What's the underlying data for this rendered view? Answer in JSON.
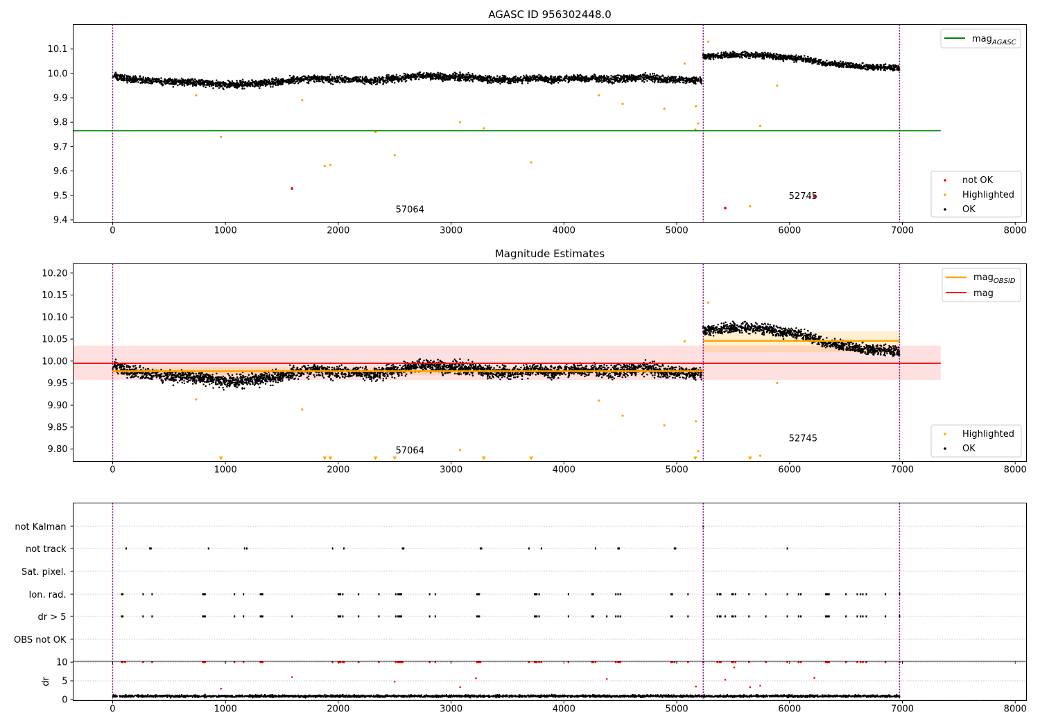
{
  "chart_data": [
    {
      "type": "scatter",
      "title": "AGASC ID 956302448.0",
      "xlabel": "",
      "ylabel": "",
      "xlim": [
        -350,
        8100
      ],
      "ylim": [
        9.39,
        10.2
      ],
      "xticks": [
        0,
        1000,
        2000,
        3000,
        4000,
        5000,
        6000,
        7000,
        8000
      ],
      "xtick_labels": [
        "0",
        "1000",
        "2000",
        "3000",
        "4000",
        "5000",
        "6000",
        "7000",
        "8000"
      ],
      "yticks": [
        9.4,
        9.5,
        9.6,
        9.7,
        9.8,
        9.9,
        10.0,
        10.1
      ],
      "ytick_labels": [
        "9.4",
        "9.5",
        "9.6",
        "9.7",
        "9.8",
        "9.9",
        "10.0",
        "10.1"
      ],
      "obsid_boundaries": [
        0,
        5235,
        6975
      ],
      "obsid_labels": [
        {
          "x": 2500,
          "y": 9.43,
          "text": "57064"
        },
        {
          "x": 5985,
          "y": 9.485,
          "text": "52745"
        }
      ],
      "reference_lines": [
        {
          "name": "mag_AGASC",
          "label_main": "mag",
          "label_sub": "AGASC",
          "y": 9.765,
          "x_range": [
            -350,
            7340
          ],
          "color": "#008000"
        }
      ],
      "ok_segments": [
        {
          "x_start": 0,
          "x_end": 5220,
          "values": [
            9.99,
            9.975,
            9.97,
            9.965,
            9.965,
            9.96,
            9.955,
            9.955,
            9.96,
            9.965,
            9.975,
            9.98,
            9.975,
            9.975,
            9.97,
            9.975,
            9.985,
            9.99,
            9.985,
            9.985,
            9.98,
            9.975,
            9.975,
            9.98,
            9.975,
            9.98,
            9.98,
            9.975,
            9.98,
            9.985,
            9.975,
            9.975,
            9.97
          ],
          "spread": 0.025
        },
        {
          "x_start": 5225,
          "x_end": 6975,
          "values": [
            10.07,
            10.07,
            10.075,
            10.075,
            10.075,
            10.07,
            10.065,
            10.06,
            10.05,
            10.04,
            10.035,
            10.03,
            10.025,
            10.025,
            10.02
          ],
          "spread": 0.02
        }
      ],
      "highlighted_points": [
        {
          "x": 740,
          "y": 9.91
        },
        {
          "x": 960,
          "y": 9.74
        },
        {
          "x": 1680,
          "y": 9.89
        },
        {
          "x": 1880,
          "y": 9.62
        },
        {
          "x": 1930,
          "y": 9.625
        },
        {
          "x": 2330,
          "y": 9.76
        },
        {
          "x": 2500,
          "y": 9.665
        },
        {
          "x": 3080,
          "y": 9.8
        },
        {
          "x": 3290,
          "y": 9.775
        },
        {
          "x": 3710,
          "y": 9.635
        },
        {
          "x": 4310,
          "y": 9.91
        },
        {
          "x": 4520,
          "y": 9.875
        },
        {
          "x": 4890,
          "y": 9.855
        },
        {
          "x": 5070,
          "y": 10.04
        },
        {
          "x": 5170,
          "y": 9.865
        },
        {
          "x": 5190,
          "y": 9.795
        },
        {
          "x": 5165,
          "y": 9.77
        },
        {
          "x": 5280,
          "y": 10.13
        },
        {
          "x": 5650,
          "y": 9.455
        },
        {
          "x": 5740,
          "y": 9.785
        },
        {
          "x": 5890,
          "y": 9.95
        }
      ],
      "not_ok_points": [
        {
          "x": 1590,
          "y": 9.528
        },
        {
          "x": 5430,
          "y": 9.448
        },
        {
          "x": 6220,
          "y": 9.495
        }
      ],
      "legend_upper": [
        {
          "label_main": "mag",
          "label_sub": "AGASC",
          "color": "#008000",
          "marker": "line"
        }
      ],
      "legend_lower": [
        {
          "label": "not OK",
          "color": "#ff0000",
          "marker": "dot"
        },
        {
          "label": "Highlighted",
          "color": "#ffa500",
          "marker": "dot"
        },
        {
          "label": "OK",
          "color": "#000000",
          "marker": "dot"
        }
      ]
    },
    {
      "type": "scatter",
      "title": "Magnitude Estimates",
      "xlabel": "",
      "ylabel": "",
      "xlim": [
        -350,
        8100
      ],
      "ylim": [
        9.772,
        10.221
      ],
      "xticks": [
        0,
        1000,
        2000,
        3000,
        4000,
        5000,
        6000,
        7000,
        8000
      ],
      "xtick_labels": [
        "0",
        "1000",
        "2000",
        "3000",
        "4000",
        "5000",
        "6000",
        "7000",
        "8000"
      ],
      "yticks": [
        9.8,
        9.85,
        9.9,
        9.95,
        10.0,
        10.05,
        10.1,
        10.15,
        10.2
      ],
      "ytick_labels": [
        "9.80",
        "9.85",
        "9.90",
        "9.95",
        "10.00",
        "10.05",
        "10.10",
        "10.15",
        "10.20"
      ],
      "obsid_boundaries": [
        0,
        5235,
        6975
      ],
      "obsid_labels": [
        {
          "x": 2500,
          "y": 9.79,
          "text": "57064"
        },
        {
          "x": 5985,
          "y": 9.818,
          "text": "52745"
        }
      ],
      "mag_band": {
        "y": 9.995,
        "low": 9.957,
        "high": 10.035,
        "x_range": [
          -350,
          7340
        ],
        "color": "#ff0000"
      },
      "obsid_mags": [
        {
          "x_range": [
            0,
            5235
          ],
          "y": 9.977,
          "low": 9.968,
          "high": 9.986
        },
        {
          "x_range": [
            5235,
            6975
          ],
          "y": 10.046,
          "low": 10.02,
          "high": 10.068
        }
      ],
      "ok_segments": [
        {
          "x_start": 0,
          "x_end": 5220,
          "values": [
            9.99,
            9.975,
            9.97,
            9.965,
            9.965,
            9.96,
            9.955,
            9.955,
            9.96,
            9.965,
            9.975,
            9.98,
            9.975,
            9.975,
            9.97,
            9.975,
            9.985,
            9.99,
            9.985,
            9.985,
            9.98,
            9.975,
            9.975,
            9.98,
            9.975,
            9.98,
            9.98,
            9.975,
            9.98,
            9.985,
            9.975,
            9.975,
            9.97
          ],
          "spread": 0.025
        },
        {
          "x_start": 5225,
          "x_end": 6975,
          "values": [
            10.07,
            10.07,
            10.075,
            10.075,
            10.075,
            10.07,
            10.065,
            10.06,
            10.05,
            10.04,
            10.035,
            10.03,
            10.025,
            10.025,
            10.02
          ],
          "spread": 0.02
        }
      ],
      "highlighted_points": [
        {
          "x": 740,
          "y": 9.913
        },
        {
          "x": 1680,
          "y": 9.89
        },
        {
          "x": 3080,
          "y": 9.798
        },
        {
          "x": 4310,
          "y": 9.91
        },
        {
          "x": 4520,
          "y": 9.876
        },
        {
          "x": 4890,
          "y": 9.854
        },
        {
          "x": 5070,
          "y": 10.045
        },
        {
          "x": 5170,
          "y": 9.863
        },
        {
          "x": 5190,
          "y": 9.795
        },
        {
          "x": 5280,
          "y": 10.133
        },
        {
          "x": 5740,
          "y": 9.785
        },
        {
          "x": 5890,
          "y": 9.95
        }
      ],
      "below_axis_markers": [
        960,
        1880,
        1930,
        2330,
        2500,
        3290,
        3710,
        5165,
        5650
      ],
      "legend_upper": [
        {
          "label_main": "mag",
          "label_sub": "OBSID",
          "color": "#ffa500",
          "marker": "line"
        },
        {
          "label_main": "mag",
          "label_sub": "",
          "color": "#ff0000",
          "marker": "line"
        }
      ],
      "legend_lower": [
        {
          "label": "Highlighted",
          "color": "#ffa500",
          "marker": "dot"
        },
        {
          "label": "OK",
          "color": "#000000",
          "marker": "dot"
        }
      ]
    },
    {
      "type": "scatter",
      "title": "",
      "xlabel": "",
      "ylabel": "",
      "xlim": [
        -350,
        8100
      ],
      "xticks": [
        0,
        1000,
        2000,
        3000,
        4000,
        5000,
        6000,
        7000,
        8000
      ],
      "xtick_labels": [
        "0",
        "1000",
        "2000",
        "3000",
        "4000",
        "5000",
        "6000",
        "7000",
        "8000"
      ],
      "obsid_boundaries": [
        0,
        5235,
        6975
      ],
      "categories": [
        "not Kalman",
        "not track",
        "Sat. pixel.",
        "Ion. rad.",
        "dr > 5",
        "OBS not OK"
      ],
      "flag_points": {
        "not Kalman": [
          5235
        ],
        "not track": [
          120,
          330,
          340,
          850,
          1170,
          1190,
          1950,
          2050,
          2570,
          2580,
          3260,
          3270,
          3690,
          3800,
          4280,
          4480,
          4490,
          4980,
          4990,
          5980
        ],
        "Sat. pixel.": [],
        "Ion. rad.": [
          80,
          90,
          270,
          350,
          800,
          810,
          820,
          1080,
          1160,
          1310,
          1320,
          1330,
          2000,
          2010,
          2020,
          2040,
          2180,
          2360,
          2510,
          2530,
          2540,
          2550,
          2560,
          2810,
          2860,
          3230,
          3240,
          3250,
          3740,
          3750,
          3760,
          3780,
          4040,
          4250,
          4260,
          4460,
          4480,
          4500,
          4950,
          4960,
          5100,
          5360,
          5380,
          5390,
          5490,
          5500,
          5520,
          5640,
          5790,
          5980,
          6080,
          6100,
          6320,
          6330,
          6340,
          6350,
          6500,
          6600,
          6630,
          6650,
          6680,
          6850,
          6975
        ],
        "dr > 5": [
          80,
          90,
          270,
          350,
          800,
          810,
          820,
          1080,
          1160,
          1310,
          1320,
          1330,
          1590,
          2000,
          2010,
          2020,
          2040,
          2180,
          2360,
          2510,
          2530,
          2540,
          2550,
          2560,
          2810,
          2860,
          3230,
          3240,
          3250,
          3740,
          3750,
          3760,
          3780,
          4040,
          4250,
          4260,
          4380,
          4460,
          4480,
          4500,
          4950,
          4960,
          5100,
          5360,
          5380,
          5390,
          5430,
          5490,
          5500,
          5520,
          5640,
          5790,
          5980,
          6080,
          6100,
          6320,
          6330,
          6340,
          6350,
          6500,
          6600,
          6630,
          6650,
          6680,
          6850,
          6975
        ],
        "OBS not OK": []
      }
    },
    {
      "type": "scatter",
      "title": "",
      "xlabel": "",
      "ylabel": "dr",
      "xlim": [
        -350,
        8100
      ],
      "ylim": [
        -0.3,
        10.3
      ],
      "xticks": [
        0,
        1000,
        2000,
        3000,
        4000,
        5000,
        6000,
        7000,
        8000
      ],
      "xtick_labels": [
        "0",
        "1000",
        "2000",
        "3000",
        "4000",
        "5000",
        "6000",
        "7000",
        "8000"
      ],
      "yticks": [
        0,
        5,
        10
      ],
      "ytick_labels": [
        "0",
        "5",
        "10"
      ],
      "obsid_boundaries": [
        0,
        5235,
        6975
      ],
      "dr_baseline": {
        "x_start": 0,
        "x_end": 6975,
        "mean": 0.9,
        "spread": 0.6
      },
      "dr_outliers": [
        {
          "x": 960,
          "y": 2.9
        },
        {
          "x": 1590,
          "y": 6.0
        },
        {
          "x": 2500,
          "y": 4.8
        },
        {
          "x": 3080,
          "y": 3.3
        },
        {
          "x": 3220,
          "y": 5.7
        },
        {
          "x": 4380,
          "y": 5.5
        },
        {
          "x": 5170,
          "y": 3.5
        },
        {
          "x": 5430,
          "y": 5.3
        },
        {
          "x": 5510,
          "y": 8.6
        },
        {
          "x": 5650,
          "y": 3.3
        },
        {
          "x": 5740,
          "y": 3.7
        },
        {
          "x": 6220,
          "y": 5.8
        }
      ],
      "dr_capped": [
        80,
        90,
        110,
        270,
        350,
        800,
        810,
        820,
        1080,
        1160,
        1310,
        1320,
        1330,
        1950,
        2000,
        2010,
        2020,
        2040,
        2050,
        2180,
        2360,
        2510,
        2530,
        2540,
        2550,
        2560,
        2570,
        2810,
        2860,
        3230,
        3240,
        3250,
        3260,
        3690,
        3740,
        3750,
        3760,
        3780,
        3800,
        4040,
        4250,
        4260,
        4280,
        4460,
        4480,
        4490,
        4500,
        4950,
        4960,
        4980,
        5100,
        5235,
        5360,
        5380,
        5390,
        5490,
        5500,
        5520,
        5640,
        5790,
        5980,
        6080,
        6100,
        6320,
        6330,
        6340,
        6350,
        6500,
        6600,
        6630,
        6650,
        6680,
        6850,
        6975
      ]
    }
  ]
}
